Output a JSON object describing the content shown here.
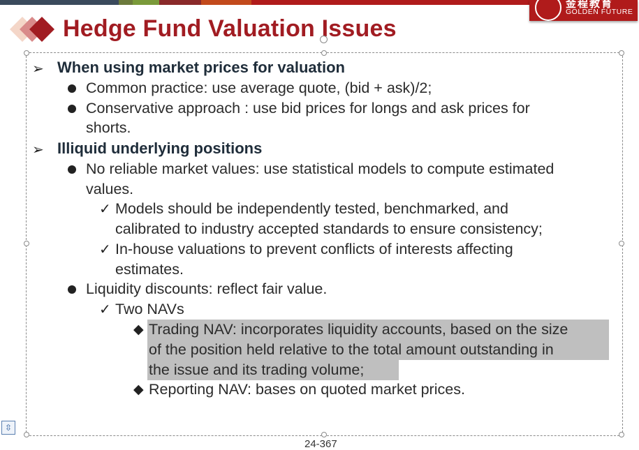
{
  "brand": {
    "logo_cn": "金程教育",
    "logo_en": "GOLDEN FUTURE",
    "color": "#b01b1b"
  },
  "slide": {
    "title": "Hedge Fund Valuation Issues",
    "title_color": "#a11c22",
    "page_number": "24-367"
  },
  "content": {
    "s1_heading": "When using market prices for valuation",
    "s1_b1": "Common practice: use average quote, (bid + ask)/2;",
    "s1_b2_line1": "Conservative approach : use bid prices for longs and ask prices for",
    "s1_b2_line2": "shorts.",
    "s2_heading": "Illiquid underlying positions",
    "s2_b1_line1": "No reliable market values: use statistical models to compute estimated",
    "s2_b1_line2": "values.",
    "s2_c1_line1": "Models should be independently tested, benchmarked, and",
    "s2_c1_line2": "calibrated to industry accepted standards to ensure consistency;",
    "s2_c2_line1": "In-house valuations to prevent conflicts of interests affecting",
    "s2_c2_line2": "estimates.",
    "s2_b2": "Liquidity discounts: reflect fair value.",
    "s2_c3": "Two NAVs",
    "s2_d1_line1": "Trading NAV: incorporates liquidity accounts, based on the size",
    "s2_d1_line2": "of the position held relative to the total amount outstanding in",
    "s2_d1_line3": "the issue and its trading volume;",
    "s2_d2": "Reporting NAV: bases on quoted market prices."
  },
  "icons": {
    "arrow": "➢",
    "check": "✓",
    "diamond": "◆",
    "layout": "⇳"
  },
  "colors": {
    "highlight": "#bfbfbf"
  }
}
